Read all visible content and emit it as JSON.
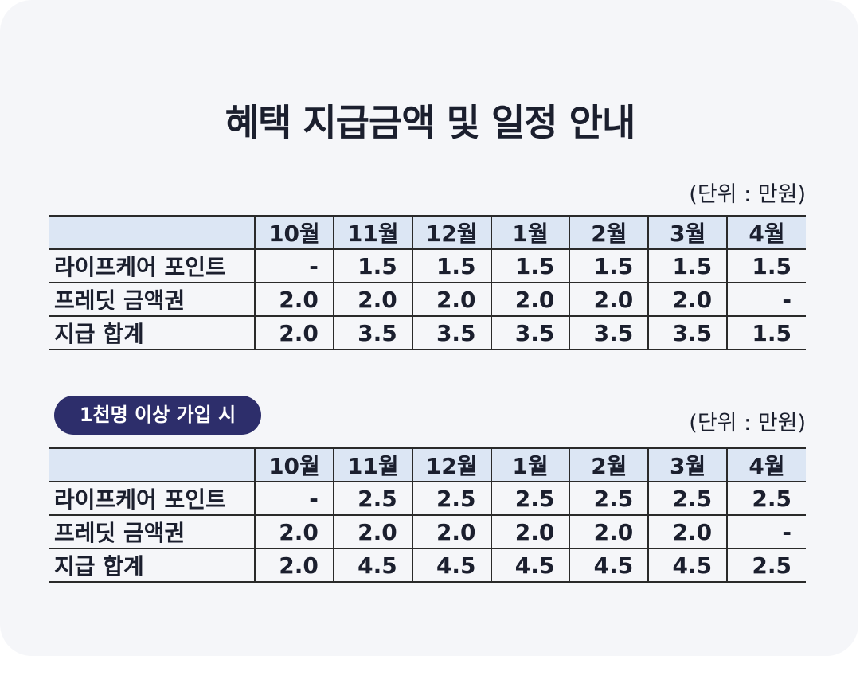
{
  "title": "혜택 지급금액 및 일정 안내",
  "tables": [
    {
      "unit": "(단위 : 만원)",
      "columns": [
        "10월",
        "11월",
        "12월",
        "1월",
        "2월",
        "3월",
        "4월"
      ],
      "rows": [
        {
          "label": "라이프케어 포인트",
          "cells": [
            "-",
            "1.5",
            "1.5",
            "1.5",
            "1.5",
            "1.5",
            "1.5"
          ]
        },
        {
          "label": "프레딧 금액권",
          "cells": [
            "2.0",
            "2.0",
            "2.0",
            "2.0",
            "2.0",
            "2.0",
            "-"
          ]
        },
        {
          "label": "지급 합계",
          "cells": [
            "2.0",
            "3.5",
            "3.5",
            "3.5",
            "3.5",
            "3.5",
            "1.5"
          ]
        }
      ]
    },
    {
      "badge": "1천명 이상 가입 시",
      "unit": "(단위 : 만원)",
      "columns": [
        "10월",
        "11월",
        "12월",
        "1월",
        "2월",
        "3월",
        "4월"
      ],
      "rows": [
        {
          "label": "라이프케어 포인트",
          "cells": [
            "-",
            "2.5",
            "2.5",
            "2.5",
            "2.5",
            "2.5",
            "2.5"
          ]
        },
        {
          "label": "프레딧 금액권",
          "cells": [
            "2.0",
            "2.0",
            "2.0",
            "2.0",
            "2.0",
            "2.0",
            "-"
          ]
        },
        {
          "label": "지급 합계",
          "cells": [
            "2.0",
            "4.5",
            "4.5",
            "4.5",
            "4.5",
            "4.5",
            "2.5"
          ]
        }
      ]
    }
  ]
}
